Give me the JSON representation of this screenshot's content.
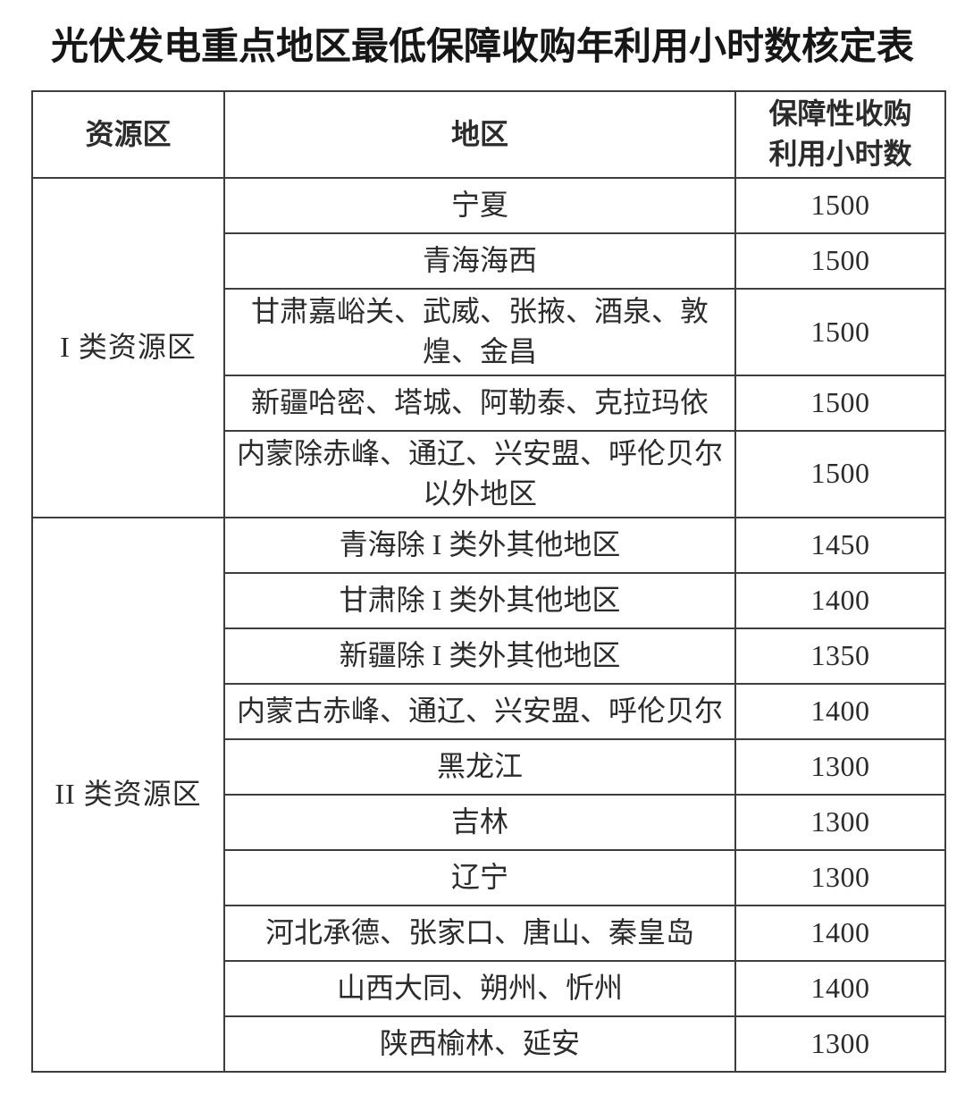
{
  "page": {
    "title": "光伏发电重点地区最低保障收购年利用小时数核定表"
  },
  "table": {
    "headers": {
      "resource_zone": "资源区",
      "region": "地区",
      "hours": "保障性收购\n利用小时数"
    },
    "groups": [
      {
        "label": "I 类资源区",
        "rows": [
          {
            "region": "宁夏",
            "hours": "1500"
          },
          {
            "region": "青海海西",
            "hours": "1500"
          },
          {
            "region": "甘肃嘉峪关、武威、张掖、酒泉、敦煌、金昌",
            "hours": "1500"
          },
          {
            "region": "新疆哈密、塔城、阿勒泰、克拉玛依",
            "hours": "1500"
          },
          {
            "region": "内蒙除赤峰、通辽、兴安盟、呼伦贝尔以外地区",
            "hours": "1500"
          }
        ]
      },
      {
        "label": "II 类资源区",
        "rows": [
          {
            "region": "青海除 I 类外其他地区",
            "hours": "1450"
          },
          {
            "region": "甘肃除 I 类外其他地区",
            "hours": "1400"
          },
          {
            "region": "新疆除 I 类外其他地区",
            "hours": "1350"
          },
          {
            "region": "内蒙古赤峰、通辽、兴安盟、呼伦贝尔",
            "hours": "1400"
          },
          {
            "region": "黑龙江",
            "hours": "1300"
          },
          {
            "region": "吉林",
            "hours": "1300"
          },
          {
            "region": "辽宁",
            "hours": "1300"
          },
          {
            "region": "河北承德、张家口、唐山、秦皇岛",
            "hours": "1400"
          },
          {
            "region": "山西大同、朔州、忻州",
            "hours": "1400"
          },
          {
            "region": "陕西榆林、延安",
            "hours": "1300"
          }
        ]
      }
    ]
  },
  "colors": {
    "border": "#3d3d3d",
    "text": "#2b2b2b",
    "background": "#ffffff"
  }
}
